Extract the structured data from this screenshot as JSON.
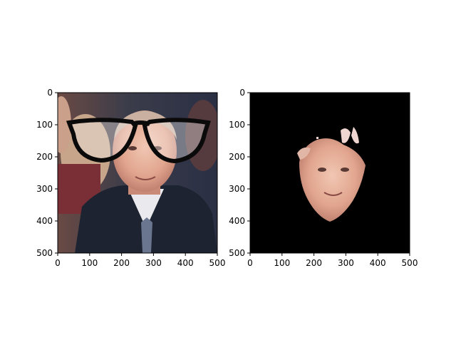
{
  "chart_data": [
    {
      "type": "image",
      "description_tag": "photo-with-glasses-overlay",
      "xlim": [
        0,
        500
      ],
      "ylim": [
        500,
        0
      ],
      "xticks": [
        0,
        100,
        200,
        300,
        400,
        500
      ],
      "yticks": [
        0,
        100,
        200,
        300,
        400,
        500
      ],
      "xtick_labels": [
        "0",
        "100",
        "200",
        "300",
        "400",
        "500"
      ],
      "ytick_labels": [
        "0",
        "100",
        "200",
        "300",
        "400",
        "500"
      ]
    },
    {
      "type": "image",
      "description_tag": "face-mask-on-black",
      "xlim": [
        0,
        500
      ],
      "ylim": [
        500,
        0
      ],
      "xticks": [
        0,
        100,
        200,
        300,
        400,
        500
      ],
      "yticks": [
        0,
        100,
        200,
        300,
        400,
        500
      ],
      "xtick_labels": [
        "0",
        "100",
        "200",
        "300",
        "400",
        "500"
      ],
      "ytick_labels": [
        "0",
        "100",
        "200",
        "300",
        "400",
        "500"
      ]
    }
  ],
  "colors": {
    "background": "#ffffff",
    "mask_background": "#000000",
    "axis": "#000000",
    "skin": "#e8b39c",
    "hair": "#c9b0a0",
    "coat": "#1d2330",
    "glasses": "#0a0a0a"
  }
}
